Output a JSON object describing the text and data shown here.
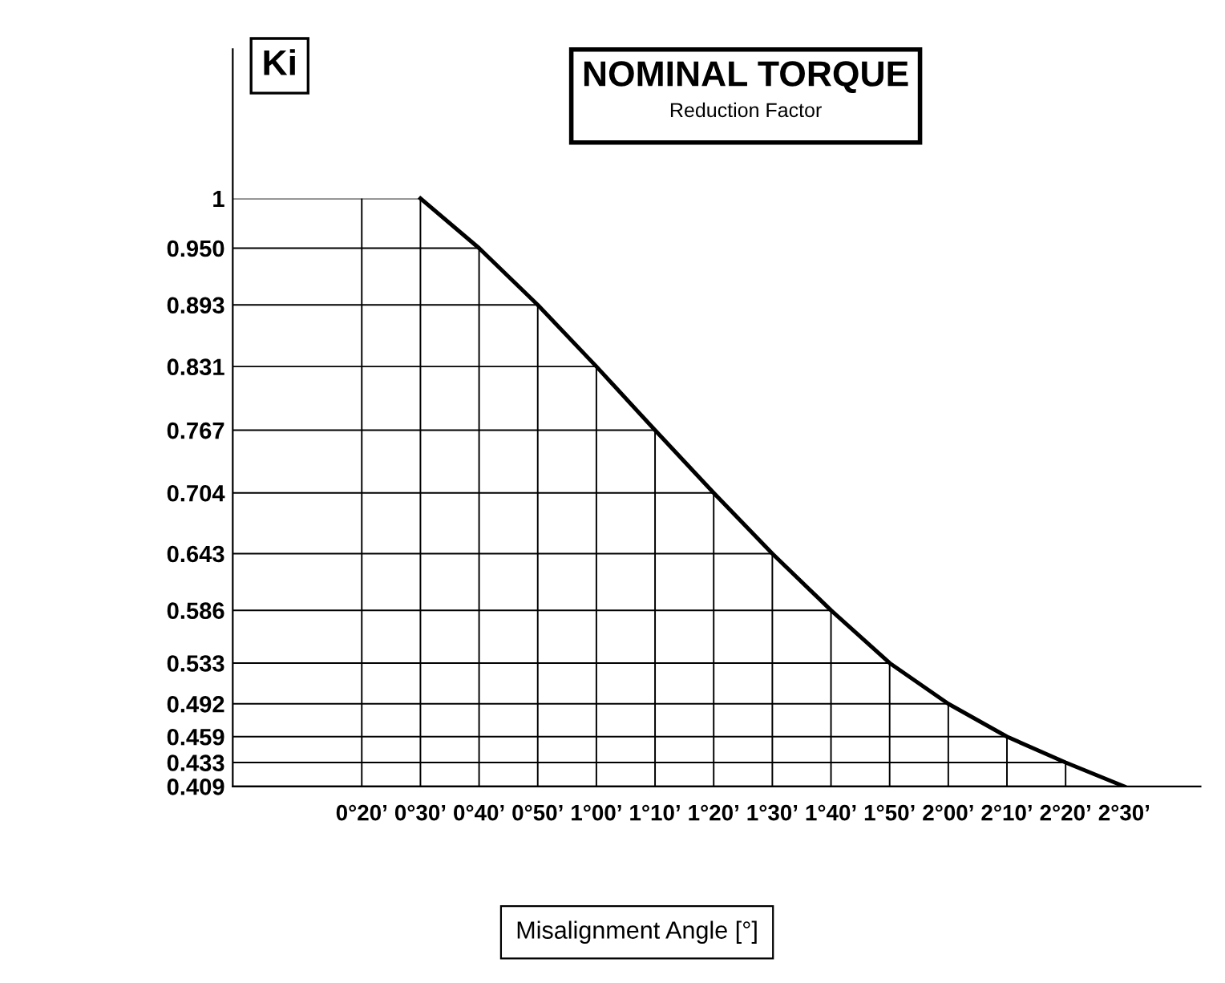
{
  "chart_data": {
    "type": "line",
    "title": "NOMINAL TORQUE",
    "subtitle": "Reduction Factor",
    "xlabel": "Misalignment Angle [°]",
    "ylabel": "Ki",
    "categories": [
      "0°20’",
      "0°30’",
      "0°40’",
      "0°50’",
      "1°00’",
      "1°10’",
      "1°20’",
      "1°30’",
      "1°40’",
      "1°50’",
      "2°00’",
      "2°10’",
      "2°20’",
      "2°30’"
    ],
    "series": [
      {
        "color": "#000000",
        "values": [
          null,
          1,
          0.95,
          0.893,
          0.831,
          0.767,
          0.704,
          0.643,
          0.586,
          0.533,
          0.492,
          0.459,
          0.433,
          0.409
        ]
      }
    ],
    "ylim": [
      0.409,
      1.15
    ],
    "yticks": [
      {
        "value": 1,
        "label": "1"
      },
      {
        "value": 0.95,
        "label": "0.950"
      },
      {
        "value": 0.893,
        "label": "0.893"
      },
      {
        "value": 0.831,
        "label": "0.831"
      },
      {
        "value": 0.767,
        "label": "0.767"
      },
      {
        "value": 0.704,
        "label": "0.704"
      },
      {
        "value": 0.643,
        "label": "0.643"
      },
      {
        "value": 0.586,
        "label": "0.586"
      },
      {
        "value": 0.533,
        "label": "0.533"
      },
      {
        "value": 0.492,
        "label": "0.492"
      },
      {
        "value": 0.459,
        "label": "0.459"
      },
      {
        "value": 0.433,
        "label": "0.433"
      },
      {
        "value": 0.409,
        "label": "0.409"
      }
    ],
    "grid": true,
    "marker": "none",
    "line_style": "solid",
    "legend": false
  }
}
